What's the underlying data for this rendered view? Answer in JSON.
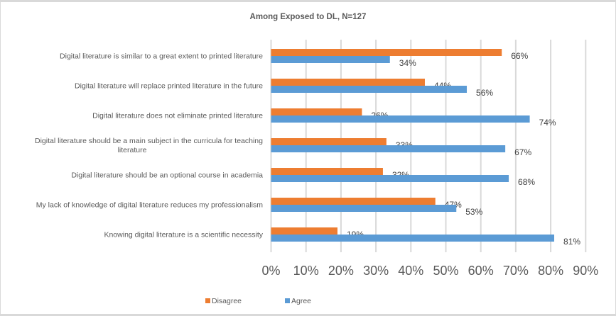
{
  "chart_data": {
    "type": "bar",
    "orientation": "horizontal",
    "title": "Among Exposed to DL, N=127",
    "xlabel": "",
    "ylabel": "",
    "xlim": [
      0,
      90
    ],
    "x_ticks": [
      "0%",
      "10%",
      "20%",
      "30%",
      "40%",
      "50%",
      "60%",
      "70%",
      "80%",
      "90%"
    ],
    "grid": true,
    "legend_position": "bottom-left",
    "categories": [
      [
        "Digital literature is similar to a great extent to printed literature"
      ],
      [
        "Digital literature will replace printed  literature in the future"
      ],
      [
        "Digital literature does not eliminate printed literature"
      ],
      [
        "Digital literature should be a main subject in the curricula for teaching",
        "literature"
      ],
      [
        "Digital literature should be an optional course in academia"
      ],
      [
        "My lack of knowledge of digital literature reduces my professionalism"
      ],
      [
        "Knowing digital literature is a scientific necessity"
      ]
    ],
    "series": [
      {
        "name": "Disagree",
        "color": "#ed7d31",
        "values": [
          66,
          44,
          26,
          33,
          32,
          47,
          19
        ],
        "labels": [
          "66%",
          "44%",
          "26%",
          "33%",
          "32%",
          "47%",
          "19%"
        ]
      },
      {
        "name": "Agree",
        "color": "#5b9bd5",
        "values": [
          34,
          56,
          74,
          67,
          68,
          53,
          81
        ],
        "labels": [
          "34%",
          "56%",
          "74%",
          "67%",
          "68%",
          "53%",
          "81%"
        ]
      }
    ]
  }
}
